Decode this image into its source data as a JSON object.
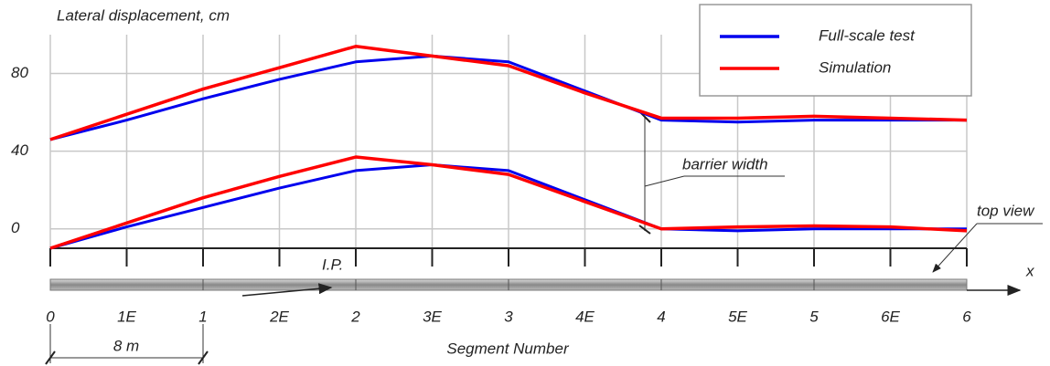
{
  "chart_data": {
    "type": "line",
    "y_label": "Lateral displacement, cm",
    "x_label": "Segment Number",
    "categories": [
      "0",
      "1E",
      "1",
      "2E",
      "2",
      "3E",
      "3",
      "4E",
      "4",
      "5E",
      "5",
      "6E",
      "6"
    ],
    "series": [
      {
        "name": "Full-scale test",
        "color": "#0000ee",
        "values": [
          [
            46,
            56,
            67,
            77,
            86,
            89,
            86,
            71,
            56,
            55,
            56,
            56,
            56
          ],
          [
            -10,
            1,
            11,
            21,
            30,
            33,
            30,
            15,
            0,
            -1,
            0,
            0,
            0
          ]
        ]
      },
      {
        "name": "Simulation",
        "color": "#ff0000",
        "values": [
          [
            46,
            59,
            72,
            83,
            94,
            89,
            84,
            70,
            57,
            57,
            58,
            57,
            56
          ],
          [
            -10,
            3,
            16,
            27,
            37,
            33,
            28,
            14,
            0,
            1,
            1.5,
            1,
            -1
          ]
        ]
      }
    ],
    "ylim": [
      -10,
      100
    ],
    "yticks": [
      0,
      40,
      80
    ],
    "grid": true,
    "annotations": {
      "barrier": "barrier width",
      "view": "top view",
      "ip": "I.P.",
      "scale": "8 m",
      "axis": "x"
    }
  }
}
